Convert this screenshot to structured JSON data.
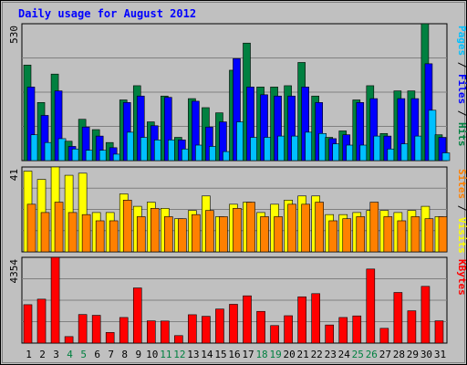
{
  "chart_data": {
    "type": "bar",
    "title": "Daily usage for August 2012",
    "categories": [
      "1",
      "2",
      "3",
      "4",
      "5",
      "6",
      "7",
      "8",
      "9",
      "10",
      "11",
      "12",
      "13",
      "14",
      "15",
      "16",
      "17",
      "18",
      "19",
      "20",
      "21",
      "22",
      "23",
      "24",
      "25",
      "26",
      "27",
      "28",
      "29",
      "30",
      "31"
    ],
    "weekend_days": [
      "4",
      "5",
      "11",
      "12",
      "18",
      "19",
      "25",
      "26"
    ],
    "panels": [
      {
        "id": "top",
        "max_label": "530",
        "ymax": 530,
        "right_label_parts": [
          "Pages",
          " / ",
          "Files",
          " / ",
          "Hits"
        ],
        "series": [
          {
            "name": "Hits",
            "color": "#008040",
            "values": [
              370,
              225,
              335,
              75,
              160,
              120,
              70,
              235,
              290,
              150,
              250,
              90,
              240,
              205,
              185,
              350,
              455,
              285,
              285,
              290,
              380,
              250,
              90,
              115,
              235,
              290,
              105,
              270,
              270,
              530,
              100
            ]
          },
          {
            "name": "Files",
            "color": "#0000FF",
            "values": [
              285,
              175,
              270,
              55,
              130,
              95,
              50,
              225,
              250,
              135,
              245,
              80,
              230,
              130,
              150,
              395,
              285,
              255,
              250,
              250,
              285,
              225,
              85,
              100,
              225,
              240,
              95,
              240,
              240,
              375,
              90
            ]
          },
          {
            "name": "Pages",
            "color": "#00C0FF",
            "values": [
              100,
              70,
              85,
              45,
              40,
              40,
              25,
              110,
              90,
              80,
              80,
              45,
              60,
              55,
              35,
              150,
              90,
              90,
              95,
              95,
              110,
              105,
              65,
              60,
              60,
              95,
              45,
              65,
              95,
              195,
              30
            ]
          }
        ]
      },
      {
        "id": "mid",
        "max_label": "41",
        "ymax": 41,
        "right_label_parts": [
          "Sites",
          " / ",
          "Visits"
        ],
        "series": [
          {
            "name": "Visits",
            "color": "#FFFF00",
            "values": [
              39,
              35,
              41,
              37,
              38,
              19,
              19,
              28,
              22,
              24,
              21,
              16,
              20,
              27,
              17,
              23,
              24,
              19,
              23,
              25,
              27,
              27,
              18,
              18,
              19,
              20,
              20,
              19,
              20,
              22,
              17
            ]
          },
          {
            "name": "Sites",
            "color": "#FF8000",
            "values": [
              23,
              19,
              24,
              19,
              18,
              15,
              15,
              25,
              17,
              21,
              17,
              16,
              18,
              20,
              17,
              21,
              24,
              17,
              17,
              23,
              23,
              24,
              15,
              16,
              17,
              24,
              17,
              15,
              17,
              16,
              17
            ]
          }
        ]
      },
      {
        "id": "bot",
        "max_label": "4354",
        "ymax": 4354,
        "right_label_parts": [
          "KBytes"
        ],
        "series": [
          {
            "name": "KBytes",
            "color": "#FF0000",
            "values": [
              1950,
              2230,
              4354,
              330,
              1450,
              1410,
              540,
              1300,
              2800,
              1130,
              1120,
              380,
              1440,
              1360,
              1730,
              1970,
              2400,
              1610,
              890,
              1390,
              2350,
              2510,
              920,
              1300,
              1380,
              3760,
              750,
              2570,
              1640,
              2880,
              1130
            ]
          }
        ]
      }
    ]
  }
}
